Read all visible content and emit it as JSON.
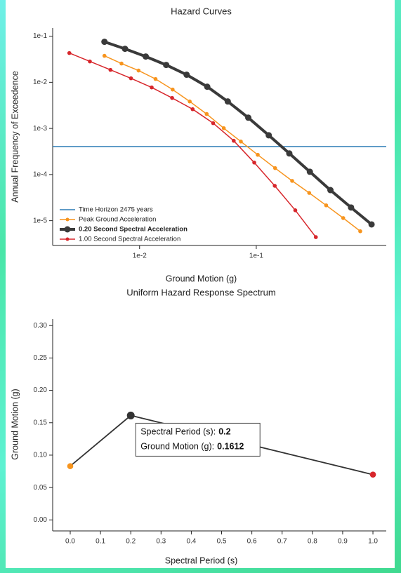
{
  "chart_data": [
    {
      "type": "line",
      "title": "Hazard Curves",
      "x_label": "Ground Motion (g)",
      "y_label": "Annual Frequency of Exceedence",
      "xscale": "log",
      "yscale": "log",
      "xlim": [
        0.0018,
        1.3
      ],
      "ylim": [
        2.9e-06,
        0.15
      ],
      "xticks": [
        {
          "value": 0.01,
          "label": "1e-2"
        },
        {
          "value": 0.1,
          "label": "1e-1"
        }
      ],
      "yticks": [
        {
          "value": 0.1,
          "label": "1e-1"
        },
        {
          "value": 0.01,
          "label": "1e-2"
        },
        {
          "value": 0.001,
          "label": "1e-3"
        },
        {
          "value": 0.0001,
          "label": "1e-4"
        },
        {
          "value": 1e-05,
          "label": "1e-5"
        }
      ],
      "legend": "lower left",
      "reference_line": {
        "name": "Time Horizon 2475 years",
        "value": 0.000404,
        "color": "#2c7bb6"
      },
      "series": [
        {
          "name": "Peak Ground Acceleration",
          "color": "#f7941d",
          "bold": false,
          "x": [
            0.005,
            0.007,
            0.0098,
            0.0137,
            0.0192,
            0.0269,
            0.0376,
            0.0527,
            0.0738,
            0.103,
            0.145,
            0.203,
            0.284,
            0.397,
            0.556,
            0.778
          ],
          "values": [
            0.0375,
            0.0255,
            0.018,
            0.0118,
            0.00697,
            0.00384,
            0.00205,
            0.00101,
            0.00052,
            0.000268,
            0.000138,
            7.3e-05,
            4e-05,
            2.15e-05,
            1.14e-05,
            5.9e-06
          ]
        },
        {
          "name": "0.20 Second Spectral Acceleration",
          "color": "#3a3a3a",
          "bold": true,
          "x": [
            0.005,
            0.0075,
            0.0113,
            0.0169,
            0.0253,
            0.038,
            0.057,
            0.0854,
            0.128,
            0.192,
            0.288,
            0.432,
            0.649,
            0.973
          ],
          "values": [
            0.0755,
            0.0532,
            0.0362,
            0.0238,
            0.0146,
            0.00802,
            0.00384,
            0.00171,
            0.00071,
            0.000287,
            0.000115,
            4.6e-05,
            1.93e-05,
            8.3e-06
          ]
        },
        {
          "name": "1.00 Second Spectral Acceleration",
          "color": "#d7262b",
          "bold": false,
          "x": [
            0.0025,
            0.00375,
            0.00563,
            0.00844,
            0.0127,
            0.019,
            0.0285,
            0.0427,
            0.0641,
            0.0961,
            0.144,
            0.216,
            0.324
          ],
          "values": [
            0.0431,
            0.0283,
            0.0186,
            0.0122,
            0.00774,
            0.00458,
            0.00261,
            0.0013,
            0.00054,
            0.000182,
            5.7e-05,
            1.68e-05,
            4.4e-06
          ]
        }
      ]
    },
    {
      "type": "line",
      "title": "Uniform Hazard Response Spectrum",
      "x_label": "Spectral Period (s)",
      "y_label": "Ground Motion (g)",
      "xlim": [
        -0.058,
        1.044
      ],
      "ylim": [
        -0.017,
        0.31
      ],
      "xticks": [
        {
          "value": 0,
          "label": "0.0"
        },
        0.1,
        0.2,
        0.3,
        0.4,
        0.5,
        0.6,
        0.7,
        0.8,
        0.9,
        {
          "value": 1,
          "label": "1.0"
        }
      ],
      "yticks": [
        {
          "value": 0,
          "label": "0.00"
        },
        0.05,
        {
          "value": 0.1,
          "label": "0.10"
        },
        0.15,
        {
          "value": 0.2,
          "label": "0.20"
        },
        0.25,
        {
          "value": 0.3,
          "label": "0.30"
        }
      ],
      "x": [
        0,
        0.2,
        1
      ],
      "values": [
        0.083,
        0.1612,
        0.07
      ],
      "color": "#333333",
      "point_colors": [
        "#f7941d",
        "#333333",
        "#d7262b"
      ],
      "tooltip": {
        "index": 1,
        "x_label": "Spectral Period (s):",
        "y_label": "Ground Motion (g):"
      }
    }
  ]
}
